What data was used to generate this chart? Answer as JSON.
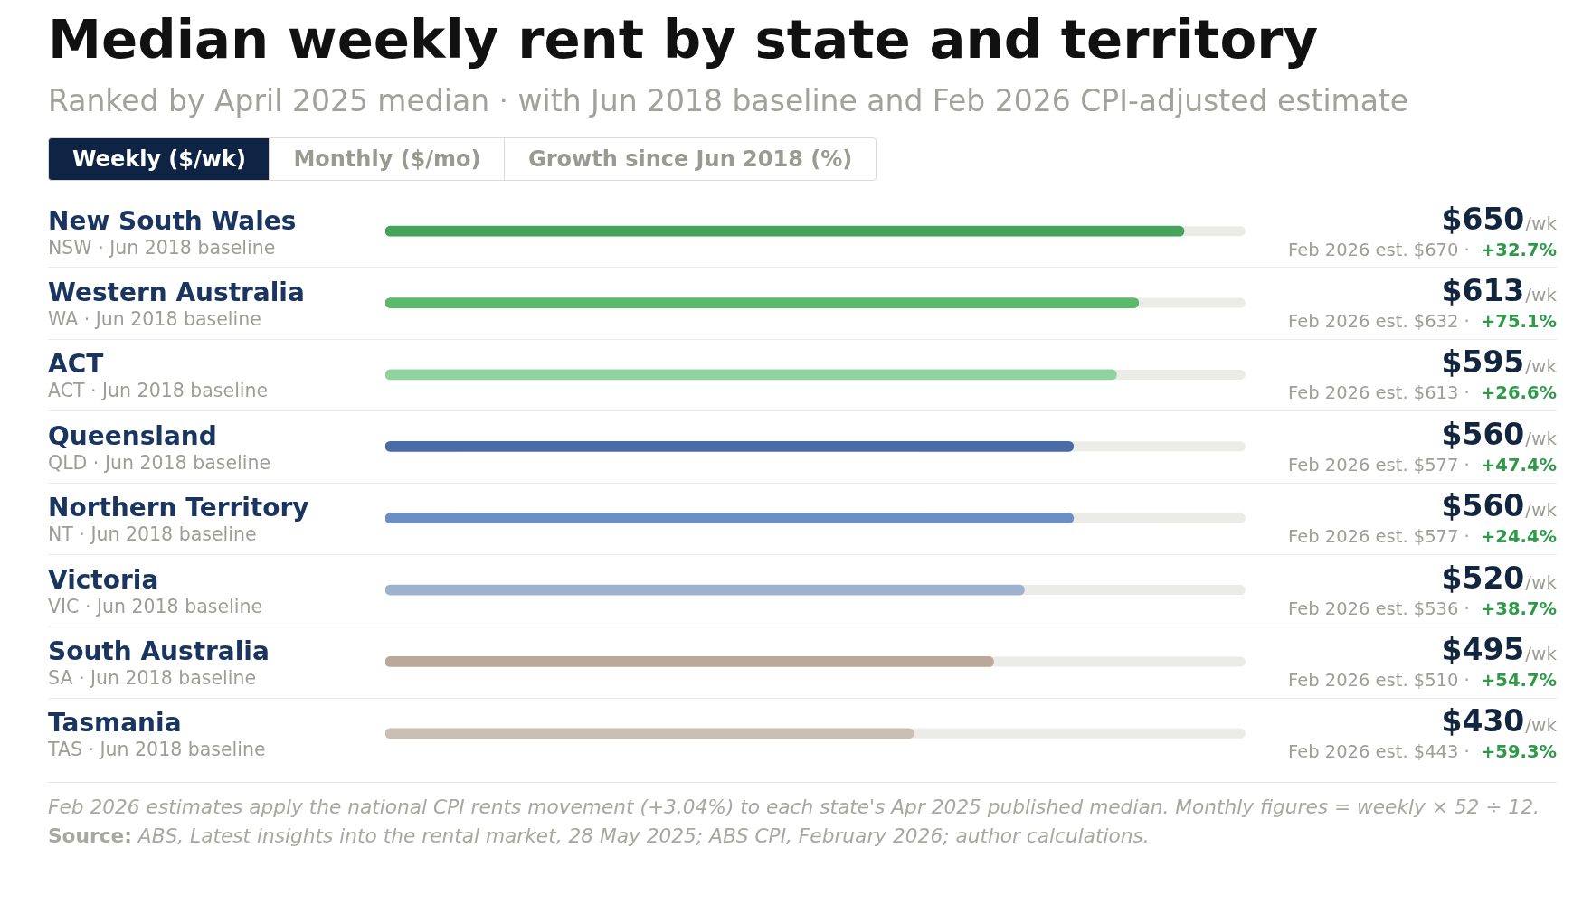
{
  "chart_data": {
    "type": "bar",
    "orientation": "horizontal",
    "title": "Median weekly rent by state and territory",
    "subtitle": "Ranked by April 2025 median · with Jun 2018 baseline and Feb 2026 CPI-adjusted estimate",
    "categories": [
      "New South Wales\nNSW · Jun 2018 baseline",
      "Western Australia\nWA · Jun 2018 baseline",
      "ACT\nACT · Jun 2018 baseline",
      "Queensland\nQLD · Jun 2018 baseline",
      "Northern Territory\nNT · Jun 2018 baseline",
      "Victoria\nVIC · Jun 2018 baseline",
      "South Australia\nSA · Jun 2018 baseline",
      "Tasmania\nTAS · Jun 2018 baseline"
    ],
    "values": [
      650,
      613,
      595,
      560,
      560,
      520,
      495,
      430
    ],
    "colors": [
      "#45a35a",
      "#5cb96b",
      "#8fd3a0",
      "#4a6ba6",
      "#6a8fc6",
      "#9db2cf",
      "#bba898",
      "#cbbfb3"
    ],
    "value_labels": [
      "$650/wk",
      "$613/wk",
      "$595/wk",
      "$560/wk",
      "$560/wk",
      "$520/wk",
      "$495/wk",
      "$430/wk"
    ],
    "xlim": [
      0,
      700
    ],
    "tick_labels": "y",
    "grid": "y",
    "annotations": [
      "Weekly ($/wk)",
      "Monthly ($/mo)",
      "Growth since Jun 2018 (%)",
      "Feb 2026 est. $670 · +32.7%",
      "Feb 2026 est. $632 · +75.1%",
      "Feb 2026 est. $613 · +26.6%",
      "Feb 2026 est. $577 · +47.4%",
      "Feb 2026 est. $577 · +24.4%",
      "Feb 2026 est. $536 · +38.7%",
      "Feb 2026 est. $510 · +54.7%",
      "Feb 2026 est. $443 · +59.3%",
      "Feb 2026 estimates apply the national CPI rents movement (+3.04%) to each state's Apr 2025 published median. Monthly figures = weekly × 52 ÷ 12.",
      "Source: ABS, Latest insights into the rental market, 28 May 2025; ABS CPI, February 2026; author calculations."
    ]
  }
}
